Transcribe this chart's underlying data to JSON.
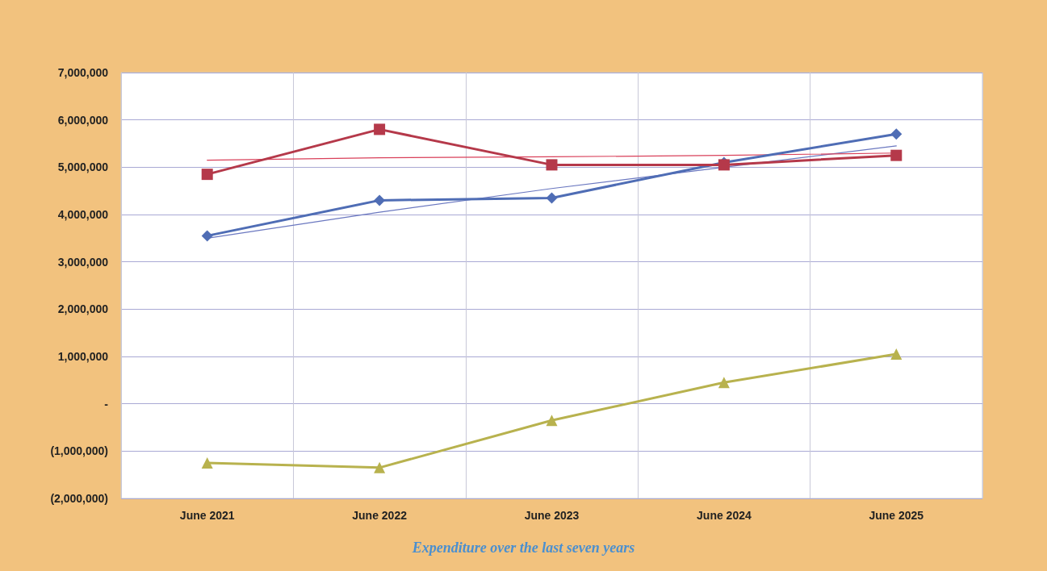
{
  "chart_data": {
    "type": "line",
    "categories": [
      "June 2021",
      "June 2022",
      "June 2023",
      "June 2024",
      "June 2025"
    ],
    "series": [
      {
        "color": "#4f6db5",
        "marker": "diamond",
        "values": [
          3550000,
          4300000,
          4350000,
          5100000,
          5700000
        ]
      },
      {
        "color": "#b5394a",
        "marker": "square",
        "values": [
          4850000,
          5800000,
          5050000,
          5050000,
          5250000
        ]
      },
      {
        "color": "#b8b24e",
        "marker": "triangle",
        "values": [
          -1250000,
          -1350000,
          -350000,
          450000,
          1050000
        ]
      },
      {
        "color": "#6b78c0",
        "marker": "none",
        "values": [
          3500000,
          4050000,
          4550000,
          5000000,
          5450000
        ]
      },
      {
        "color": "#d9405a",
        "marker": "none",
        "values": [
          5150000,
          5200000,
          5220000,
          5250000,
          5300000
        ]
      }
    ],
    "ylim": [
      -2000000,
      7000000
    ],
    "yticks": [
      {
        "value": -2000000,
        "label": "(2,000,000)"
      },
      {
        "value": -1000000,
        "label": "(1,000,000)"
      },
      {
        "value": 0,
        "label": "-"
      },
      {
        "value": 1000000,
        "label": "1,000,000"
      },
      {
        "value": 2000000,
        "label": "2,000,000"
      },
      {
        "value": 3000000,
        "label": "3,000,000"
      },
      {
        "value": 4000000,
        "label": "4,000,000"
      },
      {
        "value": 5000000,
        "label": "5,000,000"
      },
      {
        "value": 6000000,
        "label": "6,000,000"
      },
      {
        "value": 7000000,
        "label": "7,000,000"
      }
    ],
    "grid": true,
    "line_style": "solid",
    "annotations": [
      "Expenditure over the last seven years"
    ]
  }
}
